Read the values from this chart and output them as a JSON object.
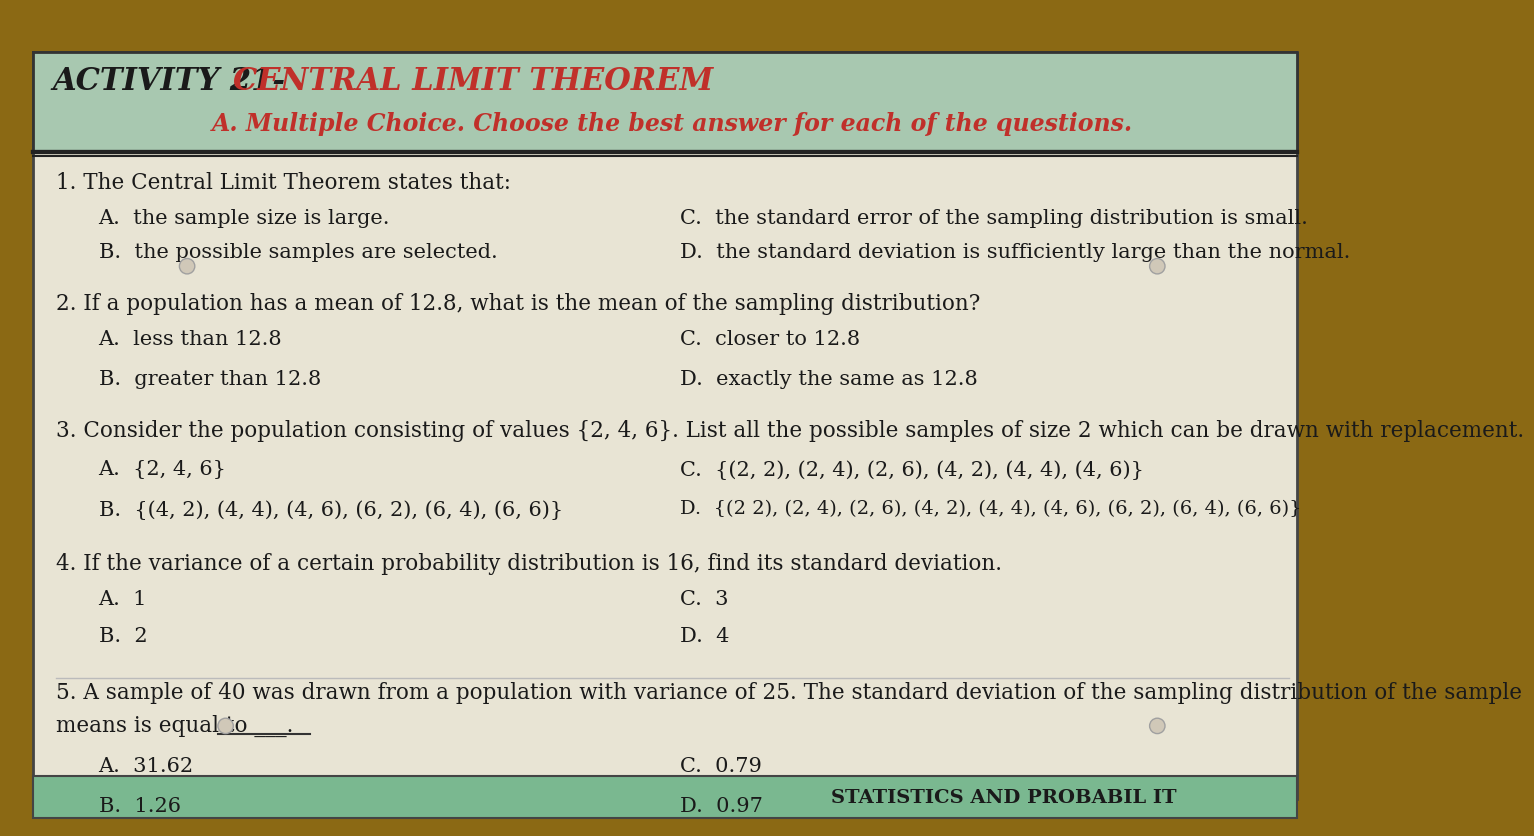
{
  "outer_bg": "#8B6914",
  "page_bg": "#e8e4d4",
  "header_bg": "#a8c8b0",
  "header_border_color": "#2a2a2a",
  "title_black_text": "ACTIVITY 21- ",
  "title_red_text": "CENTRAL LIMIT THEOREM",
  "subtitle_text": "A. Multiple Choice. Choose the best answer for each of the questions.",
  "footer_green": "#7ab890",
  "footer_text": "STATISTICS AND PROBABIL IT",
  "text_color": "#1a1a1a",
  "red_color": "#c0302a",
  "q1_num": "1. ",
  "q1_text": "The Central Limit Theorem states that:",
  "q1_A": "A.  the sample size is large.",
  "q1_B": "B.  the possible samples are selected.",
  "q1_C": "C.  the standard error of the sampling distribution is small.",
  "q1_D": "D.  the standard deviation is sufficiently large than the normal.",
  "q2_num": "2. ",
  "q2_text": "If a population has a mean of 12.8, what is the mean of the sampling distribution?",
  "q2_A": "A.  less than 12.8",
  "q2_B": "B.  greater than 12.8",
  "q2_C": "C.  closer to 12.8",
  "q2_D": "D.  exactly the same as 12.8",
  "q3_num": "3. ",
  "q3_text": "Consider the population consisting of values {2, 4, 6}. List all the possible samples of size 2 which can be drawn with replacement.",
  "q3_A": "A.  {2, 4, 6}",
  "q3_B": "B.  {(4, 2), (4, 4), (4, 6), (6, 2), (6, 4), (6, 6)}",
  "q3_C": "C.  {(2, 2), (2, 4), (2, 6), (4, 2), (4, 4), (4, 6)}",
  "q3_D": "D.  {(2 2), (2, 4), (2, 6), (4, 2), (4, 4), (4, 6), (6, 2), (6, 4), (6, 6)}",
  "q4_num": "4. ",
  "q4_text": "If the variance of a certain probability distribution is 16, find its standard deviation.",
  "q4_A": "A.  1",
  "q4_B": "B.  2",
  "q4_C": "C.  3",
  "q4_D": "D.  4",
  "q5_num": "5. ",
  "q5_text": "A sample of 40 was drawn from a population with variance of 25. The standard deviation of the sampling distribution of the sample",
  "q5_text2": "means is equal to ___.",
  "q5_A": "A.  31.62",
  "q5_B": "B.  1.26",
  "q5_C": "C.  0.79",
  "q5_D": "D.  0.97"
}
